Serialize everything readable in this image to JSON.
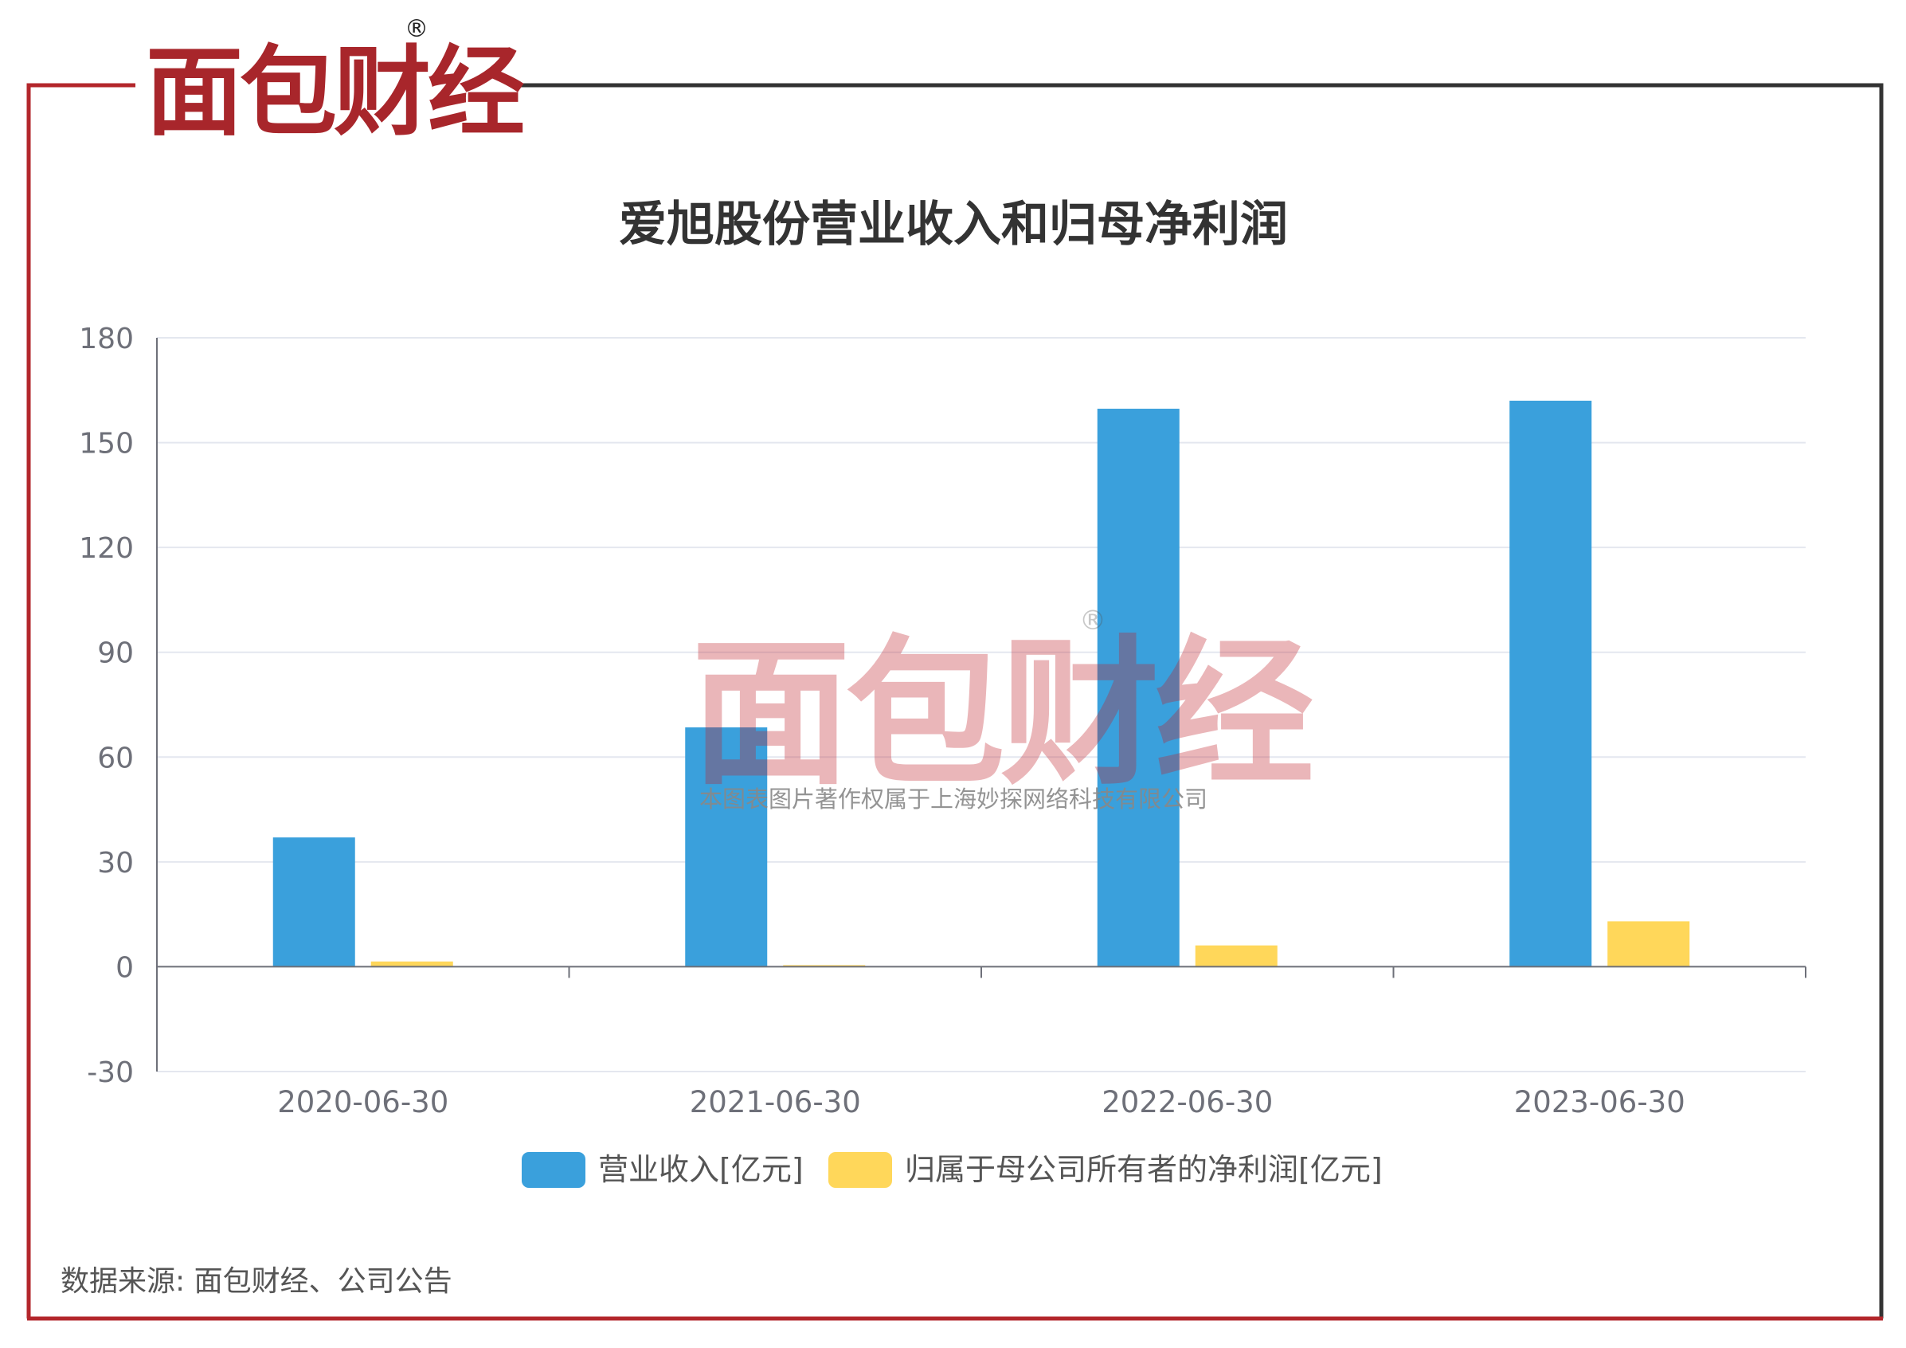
{
  "brand": {
    "logo_text": "面包财经",
    "registered_mark": "®",
    "watermark_caption": "本图表图片著作权属于上海妙探网络科技有限公司",
    "frame_red": "#b3262b",
    "frame_dark": "#333333",
    "logo_red": "#a8262b",
    "logo_dark": "#222222"
  },
  "source_note": "数据来源: 面包财经、公司公告",
  "chart_data": {
    "type": "bar",
    "title": "爱旭股份营业收入和归母净利润",
    "categories": [
      "2020-06-30",
      "2021-06-30",
      "2022-06-30",
      "2023-06-30"
    ],
    "series": [
      {
        "name": "营业收入[亿元]",
        "color": "#3aa0dc",
        "values": [
          37.0,
          68.5,
          159.7,
          162.0
        ]
      },
      {
        "name": "归属于母公司所有者的净利润[亿元]",
        "color": "#ffd75a",
        "values": [
          1.5,
          0.3,
          6.1,
          13.0
        ]
      }
    ],
    "ylim": [
      -30,
      180
    ],
    "yticks": [
      180,
      150,
      120,
      90,
      60,
      30,
      0,
      -30
    ],
    "xlabel": "",
    "ylabel": "",
    "grid": true,
    "legend_position": "bottom"
  }
}
